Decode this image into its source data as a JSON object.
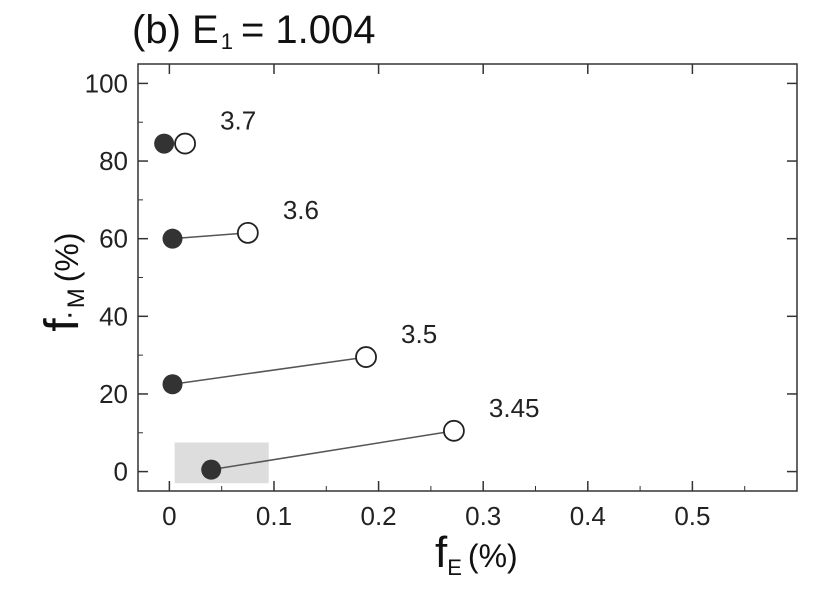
{
  "chart_data": {
    "type": "scatter",
    "title": "(b) E",
    "title_sub": "1",
    "title_value": "= 1.004",
    "xlabel_main": "f",
    "xlabel_sub": "E",
    "xlabel_unit": "(%)",
    "ylabel_main": "f",
    "ylabel_sub": "M",
    "ylabel_unit": "(%)",
    "xlim": [
      -0.03,
      0.6
    ],
    "ylim": [
      -5,
      105
    ],
    "x_ticks": [
      0,
      0.1,
      0.2,
      0.3,
      0.4,
      0.5
    ],
    "x_tick_labels": [
      "0",
      "0.1",
      "0.2",
      "0.3",
      "0.4",
      "0.5"
    ],
    "y_ticks": [
      0,
      20,
      40,
      60,
      80,
      100
    ],
    "y_tick_labels": [
      "0",
      "20",
      "40",
      "60",
      "80",
      "100"
    ],
    "grid": false,
    "highlight_region": {
      "x": [
        0.005,
        0.095
      ],
      "y": [
        -3,
        7.5
      ],
      "color": "#dddddd"
    },
    "series": [
      {
        "label": "3.7",
        "filled": {
          "x": -0.005,
          "y": 84.5
        },
        "open": {
          "x": 0.015,
          "y": 84.5
        }
      },
      {
        "label": "3.6",
        "filled": {
          "x": 0.003,
          "y": 60
        },
        "open": {
          "x": 0.075,
          "y": 61.5
        }
      },
      {
        "label": "3.5",
        "filled": {
          "x": 0.003,
          "y": 22.5
        },
        "open": {
          "x": 0.188,
          "y": 29.5
        }
      },
      {
        "label": "3.45",
        "filled": {
          "x": 0.04,
          "y": 0.5
        },
        "open": {
          "x": 0.272,
          "y": 10.5
        }
      }
    ],
    "colors": {
      "filled": "#333333",
      "open_stroke": "#222222",
      "line": "#555555",
      "axis": "#333333"
    }
  }
}
